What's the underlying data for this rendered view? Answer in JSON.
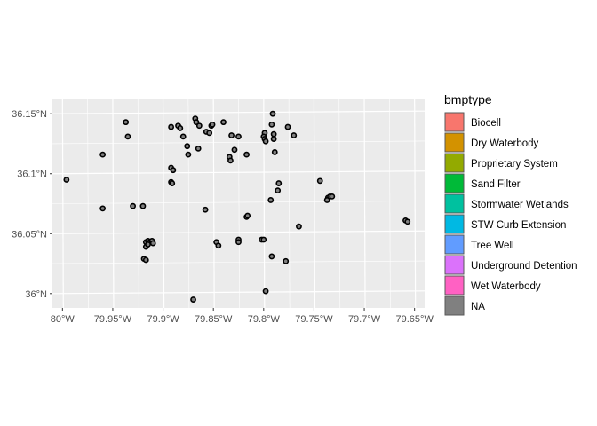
{
  "chart_data": {
    "type": "scatter",
    "title": "",
    "xlabel": "",
    "ylabel": "",
    "xlim": [
      -80.01,
      -79.64
    ],
    "ylim": [
      35.988,
      36.162
    ],
    "x_ticks": [
      {
        "value": -80.0,
        "label": "80°W"
      },
      {
        "value": -79.95,
        "label": "79.95°W"
      },
      {
        "value": -79.9,
        "label": "79.9°W"
      },
      {
        "value": -79.85,
        "label": "79.85°W"
      },
      {
        "value": -79.8,
        "label": "79.8°W"
      },
      {
        "value": -79.75,
        "label": "79.75°W"
      },
      {
        "value": -79.7,
        "label": "79.7°W"
      },
      {
        "value": -79.65,
        "label": "79.65°W"
      }
    ],
    "y_ticks": [
      {
        "value": 36.0,
        "label": "36°N"
      },
      {
        "value": 36.05,
        "label": "36.05°N"
      },
      {
        "value": 36.1,
        "label": "36.1°N"
      },
      {
        "value": 36.15,
        "label": "36.15°N"
      }
    ],
    "grid": true,
    "legend": {
      "title": "bmptype",
      "placement": "right",
      "entries": [
        {
          "label": "Biocell",
          "color": "#F8766D"
        },
        {
          "label": "Dry Waterbody",
          "color": "#D39200"
        },
        {
          "label": "Proprietary System",
          "color": "#93AA00"
        },
        {
          "label": "Sand Filter",
          "color": "#00BA38"
        },
        {
          "label": "Stormwater Wetlands",
          "color": "#00C19F"
        },
        {
          "label": "STW Curb Extension",
          "color": "#00B9E3"
        },
        {
          "label": "Tree Well",
          "color": "#619CFF"
        },
        {
          "label": "Underground Detention",
          "color": "#DB72FB"
        },
        {
          "label": "Wet Waterbody",
          "color": "#FF61C3"
        },
        {
          "label": "NA",
          "color": "#808080"
        }
      ]
    },
    "points": [
      [
        -79.937,
        36.143
      ],
      [
        -79.935,
        36.131
      ],
      [
        -79.96,
        36.116
      ],
      [
        -79.996,
        36.095
      ],
      [
        -79.96,
        36.071
      ],
      [
        -79.93,
        36.073
      ],
      [
        -79.92,
        36.073
      ],
      [
        -79.892,
        36.139
      ],
      [
        -79.885,
        36.14
      ],
      [
        -79.883,
        36.138
      ],
      [
        -79.868,
        36.146
      ],
      [
        -79.867,
        36.143
      ],
      [
        -79.864,
        36.14
      ],
      [
        -79.852,
        36.14
      ],
      [
        -79.851,
        36.141
      ],
      [
        -79.84,
        36.143
      ],
      [
        -79.88,
        36.131
      ],
      [
        -79.876,
        36.123
      ],
      [
        -79.865,
        36.121
      ],
      [
        -79.875,
        36.116
      ],
      [
        -79.857,
        36.135
      ],
      [
        -79.854,
        36.134
      ],
      [
        -79.832,
        36.132
      ],
      [
        -79.825,
        36.131
      ],
      [
        -79.829,
        36.12
      ],
      [
        -79.834,
        36.114
      ],
      [
        -79.833,
        36.111
      ],
      [
        -79.817,
        36.116
      ],
      [
        -79.892,
        36.105
      ],
      [
        -79.89,
        36.103
      ],
      [
        -79.892,
        36.093
      ],
      [
        -79.891,
        36.092
      ],
      [
        -79.858,
        36.07
      ],
      [
        -79.799,
        36.134
      ],
      [
        -79.8,
        36.131
      ],
      [
        -79.799,
        36.129
      ],
      [
        -79.798,
        36.127
      ],
      [
        -79.791,
        36.15
      ],
      [
        -79.792,
        36.141
      ],
      [
        -79.79,
        36.133
      ],
      [
        -79.79,
        36.129
      ],
      [
        -79.776,
        36.139
      ],
      [
        -79.77,
        36.132
      ],
      [
        -79.789,
        36.118
      ],
      [
        -79.785,
        36.092
      ],
      [
        -79.786,
        36.086
      ],
      [
        -79.793,
        36.078
      ],
      [
        -79.817,
        36.064
      ],
      [
        -79.816,
        36.065
      ],
      [
        -79.744,
        36.094
      ],
      [
        -79.736,
        36.08
      ],
      [
        -79.734,
        36.081
      ],
      [
        -79.732,
        36.081
      ],
      [
        -79.737,
        36.078
      ],
      [
        -79.765,
        36.056
      ],
      [
        -79.659,
        36.061
      ],
      [
        -79.657,
        36.06
      ],
      [
        -79.847,
        36.043
      ],
      [
        -79.845,
        36.04
      ],
      [
        -79.825,
        36.045
      ],
      [
        -79.825,
        36.043
      ],
      [
        -79.802,
        36.045
      ],
      [
        -79.8,
        36.045
      ],
      [
        -79.792,
        36.031
      ],
      [
        -79.778,
        36.027
      ],
      [
        -79.798,
        36.002
      ],
      [
        -79.917,
        36.043
      ],
      [
        -79.915,
        36.044
      ],
      [
        -79.913,
        36.043
      ],
      [
        -79.911,
        36.044
      ],
      [
        -79.91,
        36.042
      ],
      [
        -79.917,
        36.039
      ],
      [
        -79.915,
        36.041
      ],
      [
        -79.919,
        36.029
      ],
      [
        -79.917,
        36.028
      ],
      [
        -79.87,
        35.995
      ]
    ]
  }
}
